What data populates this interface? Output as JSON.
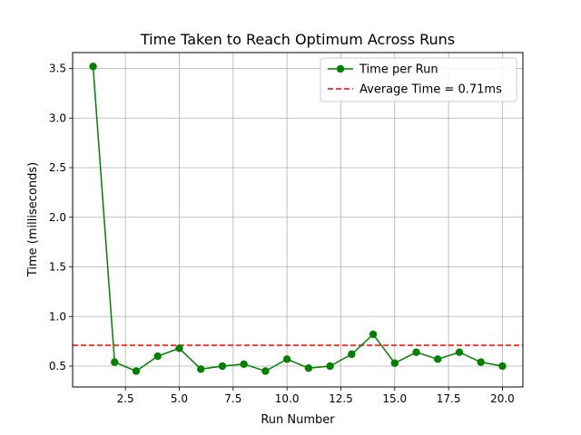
{
  "chart_data": {
    "type": "line",
    "title": "Time Taken to Reach Optimum Across Runs",
    "xlabel": "Run Number",
    "ylabel": "Time (milliseconds)",
    "xlim": [
      0.05,
      20.95
    ],
    "ylim": [
      0.29,
      3.66
    ],
    "xticks": [
      2.5,
      5.0,
      7.5,
      10.0,
      12.5,
      15.0,
      17.5,
      20.0
    ],
    "xtick_labels": [
      "2.5",
      "5.0",
      "7.5",
      "10.0",
      "12.5",
      "15.0",
      "17.5",
      "20.0"
    ],
    "yticks": [
      0.5,
      1.0,
      1.5,
      2.0,
      2.5,
      3.0,
      3.5
    ],
    "ytick_labels": [
      "0.5",
      "1.0",
      "1.5",
      "2.0",
      "2.5",
      "3.0",
      "3.5"
    ],
    "grid": true,
    "legend_placement": "top-right",
    "series": [
      {
        "name": "Time per Run",
        "color": "#008000",
        "marker": "circle",
        "x": [
          1,
          2,
          3,
          4,
          5,
          6,
          7,
          8,
          9,
          10,
          11,
          12,
          13,
          14,
          15,
          16,
          17,
          18,
          19,
          20
        ],
        "y": [
          3.52,
          0.54,
          0.45,
          0.6,
          0.68,
          0.47,
          0.5,
          0.52,
          0.45,
          0.57,
          0.48,
          0.5,
          0.62,
          0.82,
          0.53,
          0.64,
          0.57,
          0.64,
          0.54,
          0.5
        ]
      }
    ],
    "reference_lines": [
      {
        "name": "Average Time = 0.71ms",
        "orientation": "horizontal",
        "y": 0.71,
        "color": "#ff0000",
        "style": "dashed"
      }
    ]
  }
}
